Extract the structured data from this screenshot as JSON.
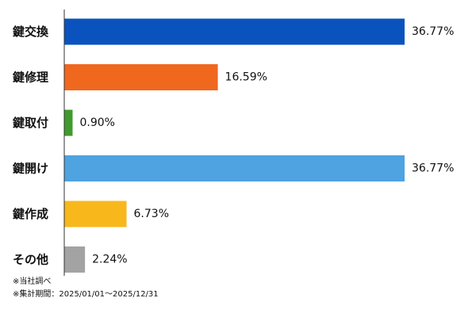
{
  "chart_data": {
    "type": "bar",
    "orientation": "horizontal",
    "categories": [
      "鍵交換",
      "鍵修理",
      "鍵取付",
      "鍵開け",
      "鍵作成",
      "その他"
    ],
    "values": [
      36.77,
      16.59,
      0.9,
      36.77,
      6.73,
      2.24
    ],
    "value_labels": [
      "36.77%",
      "16.59%",
      "0.90%",
      "36.77%",
      "6.73%",
      "2.24%"
    ],
    "colors": [
      "#0a53be",
      "#f0671e",
      "#3f9b2d",
      "#4ea3e0",
      "#f8b81c",
      "#a3a3a3"
    ],
    "xlim": [
      0,
      36.77
    ],
    "grid": false,
    "legend": false,
    "title": "",
    "xlabel": "",
    "ylabel": ""
  },
  "footnotes": {
    "line1": "※当社調べ",
    "line2": "※集計期間：2025/01/01〜2025/12/31"
  }
}
